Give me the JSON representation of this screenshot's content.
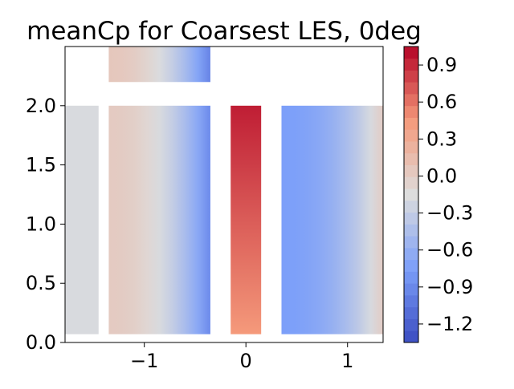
{
  "chart_data": {
    "type": "heatmap",
    "title": "meanCp for Coarsest LES, 0deg",
    "xlabel": "",
    "ylabel": "",
    "xlim": [
      -1.78,
      1.35
    ],
    "ylim": [
      0.0,
      2.5
    ],
    "x_ticks": [
      -1,
      0,
      1
    ],
    "x_tick_labels": [
      "−1",
      "0",
      "1"
    ],
    "y_ticks": [
      0.0,
      0.5,
      1.0,
      1.5,
      2.0
    ],
    "y_tick_labels": [
      "0.0",
      "0.5",
      "1.0",
      "1.5",
      "2.0"
    ],
    "colormap": "coolwarm",
    "levels": 25,
    "color_range": [
      -1.35,
      1.05
    ],
    "colorbar": {
      "ticks": [
        0.9,
        0.6,
        0.3,
        0.0,
        -0.3,
        -0.6,
        -0.9,
        -1.2
      ],
      "tick_labels": [
        "0.9",
        "0.6",
        "0.3",
        "0.0",
        "−0.3",
        "−0.6",
        "−0.9",
        "−1.2"
      ]
    },
    "regions": [
      {
        "name": "left-strip",
        "x": [
          -1.78,
          -1.45
        ],
        "y": [
          0.07,
          2.0
        ],
        "cp_left": -0.18,
        "cp_right": -0.18
      },
      {
        "name": "upstream-zone",
        "x": [
          -1.35,
          -0.35
        ],
        "y": [
          0.07,
          2.0
        ],
        "cp_left": 0.02,
        "cp_right": -0.9
      },
      {
        "name": "top-strip",
        "x": [
          -1.35,
          -0.35
        ],
        "y": [
          2.2,
          2.5
        ],
        "cp_left": 0.05,
        "cp_right": -0.95
      },
      {
        "name": "center-column",
        "x": [
          -0.15,
          0.15
        ],
        "y": [
          0.07,
          2.0
        ],
        "cp_top": 0.95,
        "cp_bottom": 0.45
      },
      {
        "name": "downstream-zone",
        "x": [
          0.35,
          1.35
        ],
        "y": [
          0.07,
          2.0
        ],
        "cp_left": -0.75,
        "cp_right": 0.0
      }
    ]
  }
}
